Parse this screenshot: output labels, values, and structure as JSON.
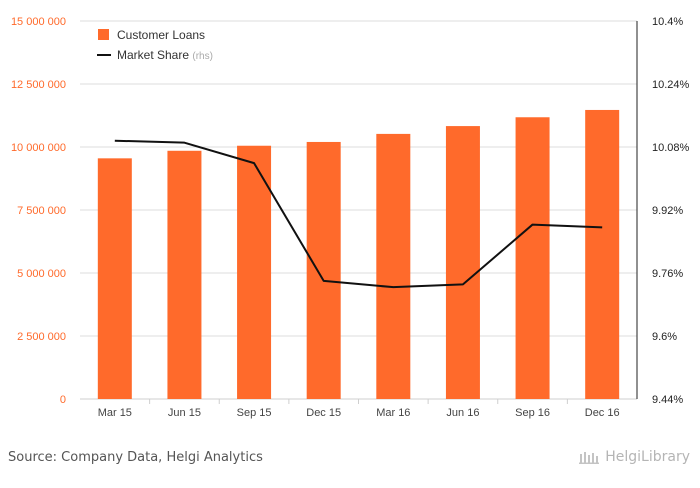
{
  "chart_data": {
    "type": "bar",
    "categories": [
      "Mar 15",
      "Jun 15",
      "Sep 15",
      "Dec 15",
      "Mar 16",
      "Jun 16",
      "Sep 16",
      "Dec 16"
    ],
    "series": [
      {
        "name": "Customer Loans",
        "type": "bar",
        "axis": "left",
        "color": "#ff6a2b",
        "values": [
          9550000,
          9850000,
          10050000,
          10200000,
          10520000,
          10830000,
          11180000,
          11470000
        ]
      },
      {
        "name": "Market Share",
        "type": "line",
        "axis": "right",
        "color": "#111111",
        "values": [
          10.096,
          10.091,
          10.039,
          9.74,
          9.724,
          9.731,
          9.883,
          9.876
        ]
      }
    ],
    "legend": {
      "items": [
        {
          "label": "Customer Loans",
          "suffix": ""
        },
        {
          "label": "Market Share",
          "suffix": "(rhs)"
        }
      ],
      "placement": "top-left"
    },
    "y_left": {
      "ylim": [
        0,
        15000000
      ],
      "ticks": [
        0,
        2500000,
        5000000,
        7500000,
        10000000,
        12500000,
        15000000
      ],
      "tick_labels": [
        "0",
        "2 500 000",
        "5 000 000",
        "7 500 000",
        "10 000 000",
        "12 500 000",
        "15 000 000"
      ],
      "color": "#ff6a2b"
    },
    "y_right": {
      "ylim": [
        9.44,
        10.4
      ],
      "ticks": [
        9.44,
        9.6,
        9.76,
        9.92,
        10.08,
        10.24,
        10.4
      ],
      "tick_labels": [
        "9.44%",
        "9.6%",
        "9.76%",
        "9.92%",
        "10.08%",
        "10.24%",
        "10.4%"
      ],
      "color": "#222222"
    },
    "grid": true
  },
  "footer": {
    "source": "Source: Company Data, Helgi Analytics",
    "logo_text": "HelgiLibrary"
  }
}
